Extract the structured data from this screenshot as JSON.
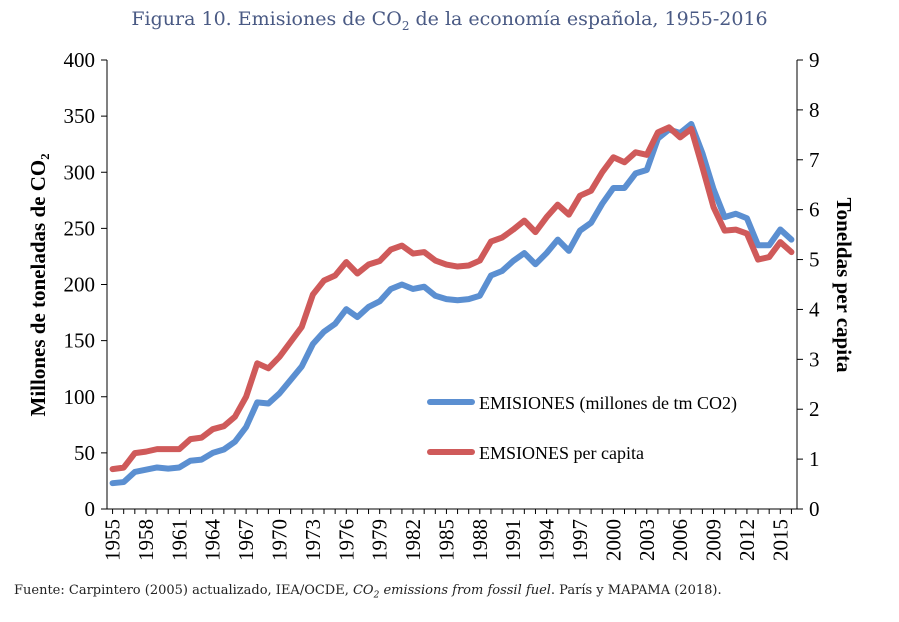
{
  "title": {
    "prefix": "Figura 10. Emisiones de CO",
    "sub": "2",
    "suffix": " de la economía española, 1955-2016"
  },
  "source": {
    "prefix": "Fuente: Carpintero (2005) actualizado, IEA/OCDE, ",
    "italic_main": "CO",
    "italic_sub": "2",
    "italic_rest": " emissions from fossil fuel",
    "suffix": ". París y MAPAMA (2018)."
  },
  "chart_data": {
    "type": "line",
    "ylabel": "Millones de toneladas de CO₂",
    "y2label": "Toneldas per capita",
    "ylim": [
      0,
      400
    ],
    "y2lim": [
      0,
      9
    ],
    "yticks": [
      0,
      50,
      100,
      150,
      200,
      250,
      300,
      350,
      400
    ],
    "y2ticks": [
      0,
      1,
      2,
      3,
      4,
      5,
      6,
      7,
      8,
      9
    ],
    "xlim": [
      1954.5,
      2016.5
    ],
    "xticks": [
      1955,
      1958,
      1961,
      1964,
      1967,
      1970,
      1973,
      1976,
      1979,
      1982,
      1985,
      1988,
      1991,
      1994,
      1997,
      2000,
      2003,
      2006,
      2009,
      2012,
      2015
    ],
    "legend_position": "lower-right",
    "x": [
      1955,
      1956,
      1957,
      1958,
      1959,
      1960,
      1961,
      1962,
      1963,
      1964,
      1965,
      1966,
      1967,
      1968,
      1969,
      1970,
      1971,
      1972,
      1973,
      1974,
      1975,
      1976,
      1977,
      1978,
      1979,
      1980,
      1981,
      1982,
      1983,
      1984,
      1985,
      1986,
      1987,
      1988,
      1989,
      1990,
      1991,
      1992,
      1993,
      1994,
      1995,
      1996,
      1997,
      1998,
      1999,
      2000,
      2001,
      2002,
      2003,
      2004,
      2005,
      2006,
      2007,
      2008,
      2009,
      2010,
      2011,
      2012,
      2013,
      2014,
      2015,
      2016
    ],
    "series": [
      {
        "name": "EMISIONES (millones de tm CO2)",
        "axis": "left",
        "color": "#5b8fd1",
        "values": [
          23,
          24,
          33,
          35,
          37,
          36,
          37,
          43,
          44,
          50,
          53,
          60,
          73,
          95,
          94,
          103,
          115,
          127,
          147,
          158,
          165,
          178,
          171,
          180,
          185,
          196,
          200,
          196,
          198,
          190,
          187,
          186,
          187,
          190,
          208,
          212,
          221,
          228,
          218,
          228,
          240,
          230,
          248,
          255,
          272,
          286,
          286,
          299,
          302,
          330,
          338,
          335,
          343,
          317,
          285,
          260,
          263,
          259,
          235,
          235,
          249,
          240
        ]
      },
      {
        "name": "EMSIONES per capita",
        "axis": "right",
        "color": "#cf5a5a",
        "values": [
          0.8,
          0.83,
          1.12,
          1.15,
          1.2,
          1.2,
          1.2,
          1.4,
          1.43,
          1.6,
          1.66,
          1.85,
          2.25,
          2.92,
          2.82,
          3.05,
          3.35,
          3.65,
          4.3,
          4.58,
          4.68,
          4.95,
          4.72,
          4.9,
          4.97,
          5.2,
          5.28,
          5.12,
          5.15,
          4.98,
          4.9,
          4.86,
          4.88,
          4.98,
          5.36,
          5.44,
          5.6,
          5.78,
          5.55,
          5.85,
          6.1,
          5.9,
          6.28,
          6.38,
          6.75,
          7.05,
          6.95,
          7.15,
          7.1,
          7.55,
          7.65,
          7.45,
          7.62,
          6.85,
          6.05,
          5.58,
          5.6,
          5.52,
          5.0,
          5.05,
          5.35,
          5.15
        ]
      }
    ]
  }
}
